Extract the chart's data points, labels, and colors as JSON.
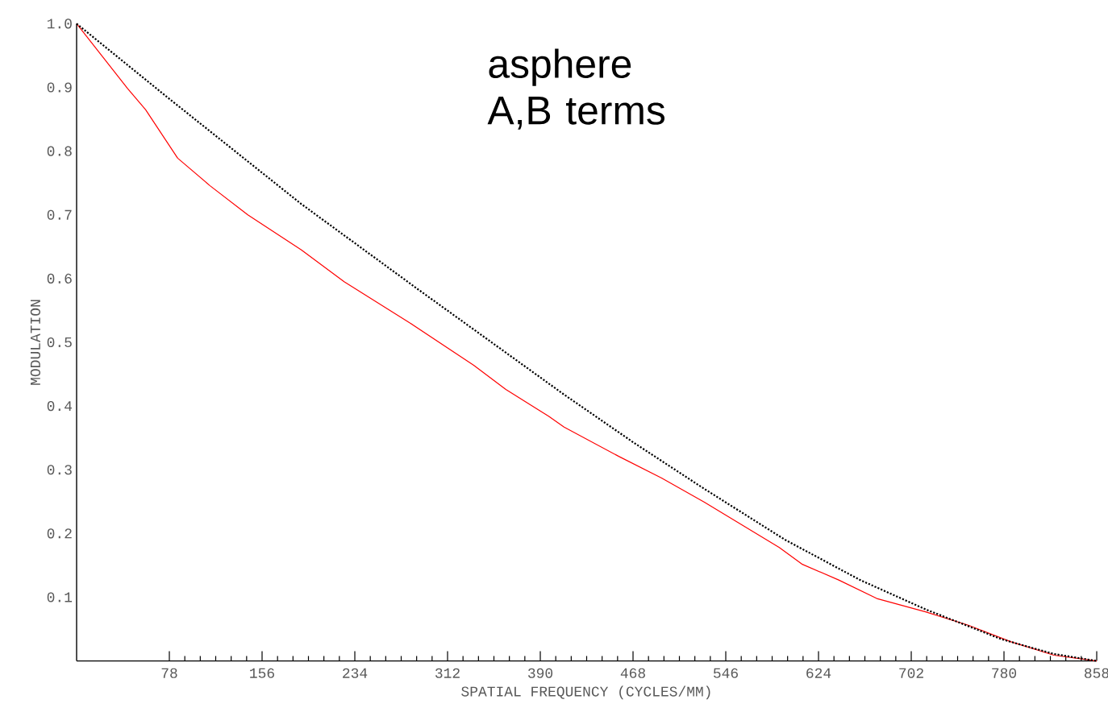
{
  "chart_data": {
    "type": "line",
    "xlabel": "SPATIAL FREQUENCY (CYCLES/MM)",
    "ylabel": "MODULATION",
    "annotations": [
      "asphere A,B terms"
    ],
    "xlim": [
      0,
      858
    ],
    "ylim": [
      0,
      1.0
    ],
    "xticks": [
      78,
      156,
      234,
      312,
      390,
      468,
      546,
      624,
      702,
      780,
      858
    ],
    "yticks": [
      0.1,
      0.2,
      0.3,
      0.4,
      0.5,
      0.6,
      0.7,
      0.8,
      0.9,
      {
        "value": 1.0,
        "label": "1.0"
      }
    ],
    "series": [
      {
        "color": "#ff0000",
        "line_style": "solid",
        "x": [
          0,
          43,
          58,
          85,
          112,
          144,
          189,
          225,
          279,
          334,
          361,
          397,
          410,
          456,
          492,
          528,
          591,
          610,
          641,
          673,
          714,
          750,
          786,
          822,
          858
        ],
        "values": [
          1.0,
          0.898,
          0.865,
          0.789,
          0.746,
          0.7,
          0.645,
          0.595,
          0.532,
          0.464,
          0.426,
          0.384,
          0.367,
          0.321,
          0.287,
          0.249,
          0.178,
          0.152,
          0.127,
          0.098,
          0.077,
          0.056,
          0.03,
          0.009,
          0.0
        ]
      },
      {
        "color": "#000000",
        "line_style": "dotted",
        "x": [
          0,
          76,
          189,
          288,
          410,
          469,
          528,
          596,
          659,
          714,
          778,
          822,
          858
        ],
        "values": [
          1.0,
          0.885,
          0.717,
          0.582,
          0.418,
          0.342,
          0.27,
          0.19,
          0.127,
          0.081,
          0.034,
          0.011,
          0.0
        ]
      }
    ]
  }
}
